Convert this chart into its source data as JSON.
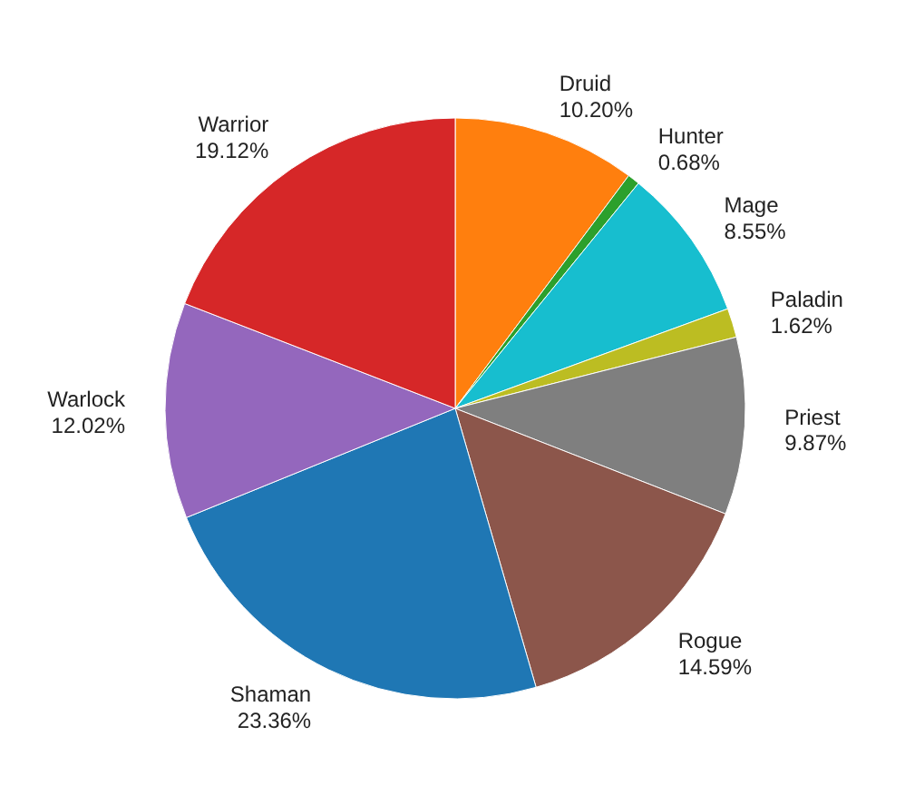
{
  "chart_data": {
    "type": "pie",
    "categories": [
      "Druid",
      "Hunter",
      "Mage",
      "Paladin",
      "Priest",
      "Rogue",
      "Shaman",
      "Warlock",
      "Warrior"
    ],
    "values": [
      10.2,
      0.68,
      8.55,
      1.62,
      9.87,
      14.59,
      23.36,
      12.02,
      19.12
    ],
    "value_labels": [
      "10.20%",
      "0.68%",
      "8.55%",
      "1.62%",
      "9.87%",
      "14.59%",
      "23.36%",
      "12.02%",
      "19.12%"
    ],
    "colors": [
      "#ff7f0e",
      "#2ca02c",
      "#17becf",
      "#bcbd22",
      "#7f7f7f",
      "#8c564b",
      "#1f77b4",
      "#9467bd",
      "#d62728"
    ],
    "legend": false
  }
}
